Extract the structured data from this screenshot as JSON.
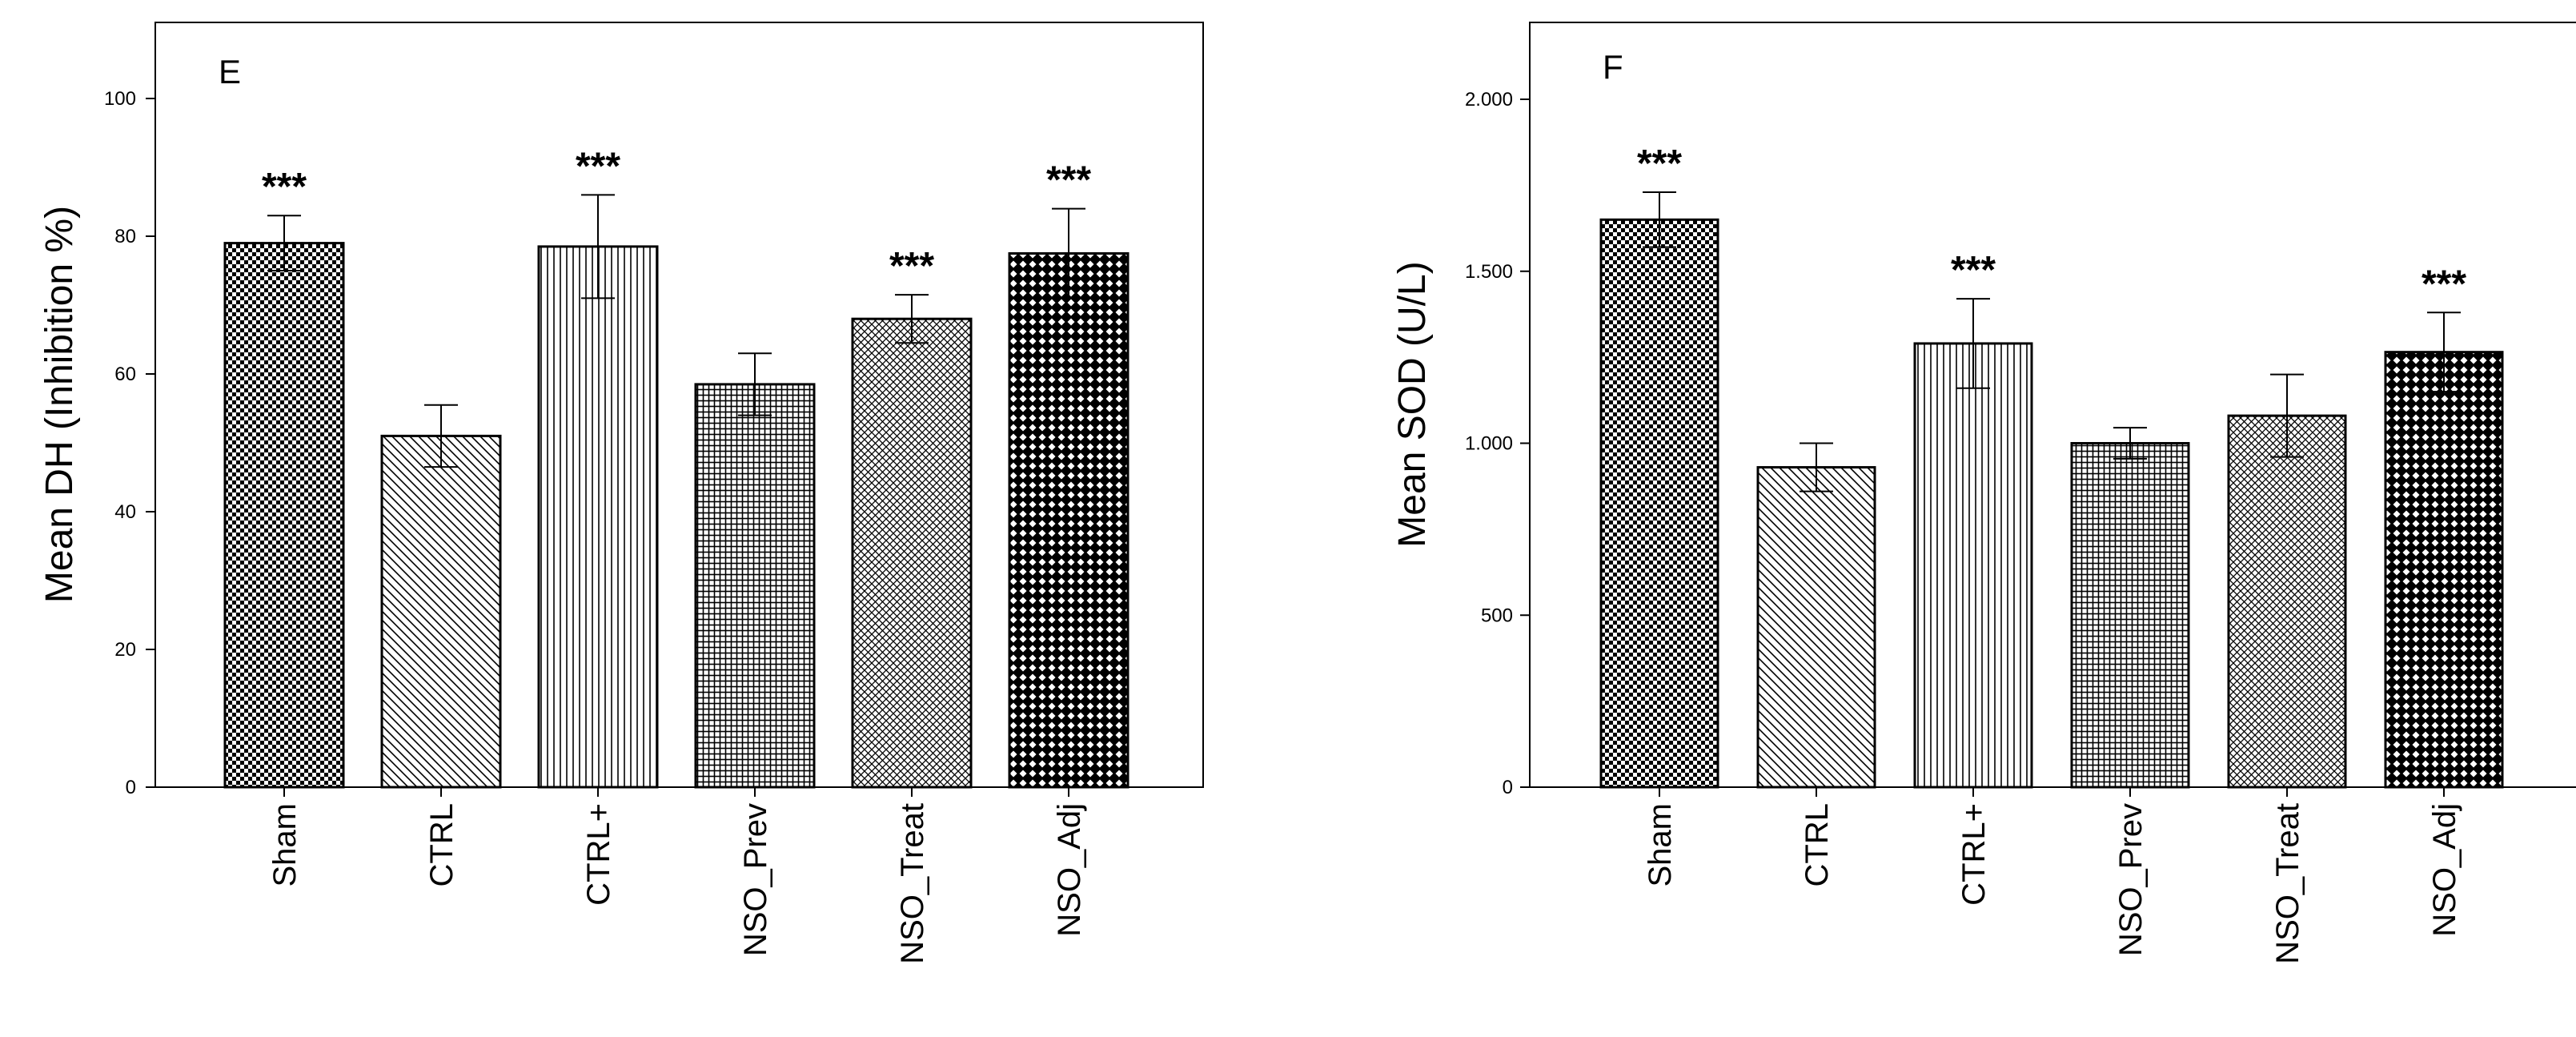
{
  "chart_data": [
    {
      "type": "bar",
      "panel": "E",
      "title": "",
      "xlabel": "",
      "ylabel": "Mean DH (Inhibition %)",
      "ylim": [
        0,
        110
      ],
      "yticks": [
        0,
        20,
        40,
        60,
        80,
        100
      ],
      "ytick_labels": [
        "0",
        "20",
        "40",
        "60",
        "80",
        "100"
      ],
      "categories": [
        "Sham",
        "CTRL",
        "CTRL+",
        "NSO_Prev",
        "NSO_Treat",
        "NSO_Adj"
      ],
      "values": [
        79,
        51,
        78.5,
        58.5,
        68,
        77.5
      ],
      "errors": [
        4,
        4.5,
        7.5,
        4.5,
        3.5,
        6.5
      ],
      "significance": [
        "***",
        "",
        "***",
        "",
        "***",
        "***"
      ],
      "patterns": [
        "checker",
        "diag-down",
        "vertical",
        "grid",
        "crosshatch",
        "diamond"
      ]
    },
    {
      "type": "bar",
      "panel": "F",
      "title": "",
      "xlabel": "",
      "ylabel": "Mean SOD (U/L)",
      "ylim": [
        0,
        2250
      ],
      "yticks": [
        0,
        500,
        1000,
        1500,
        2000
      ],
      "ytick_labels": [
        "0",
        "500",
        "1.000",
        "1.500",
        "2.000"
      ],
      "categories": [
        "Sham",
        "CTRL",
        "CTRL+",
        "NSO_Prev",
        "NSO_Treat",
        "NSO_Adj"
      ],
      "values": [
        1650,
        930,
        1290,
        1000,
        1080,
        1265
      ],
      "errors": [
        80,
        70,
        130,
        45,
        120,
        115
      ],
      "significance": [
        "***",
        "",
        "***",
        "",
        "",
        "***"
      ],
      "patterns": [
        "checker",
        "diag-down",
        "vertical",
        "grid",
        "crosshatch",
        "diamond"
      ]
    }
  ]
}
